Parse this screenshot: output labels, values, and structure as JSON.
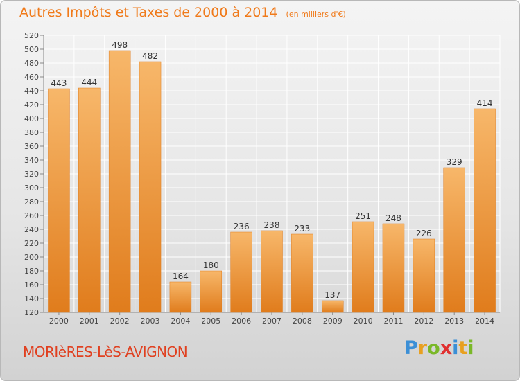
{
  "header": {
    "title": "Autres Impôts et Taxes de 2000 à 2014",
    "unit_note": "(en milliers d'€)"
  },
  "commune": "MORIèRES-LèS-AVIGNON",
  "brand": {
    "letters": [
      "P",
      "r",
      "o",
      "x",
      "i",
      "t",
      "i"
    ],
    "colors": [
      "#3b8fd6",
      "#e8a020",
      "#7ab828",
      "#e03030",
      "#3b8fd6",
      "#e8a020",
      "#7ab828"
    ]
  },
  "colors": {
    "bar": "#ef9434",
    "bar_light": "#f7b76a",
    "bar_dark": "#e07c1c",
    "title": "#f07a1a",
    "commune": "#e04020",
    "grid": "#ffffff"
  },
  "chart_data": {
    "type": "bar",
    "categories": [
      "2000",
      "2001",
      "2002",
      "2003",
      "2004",
      "2005",
      "2006",
      "2007",
      "2008",
      "2009",
      "2010",
      "2011",
      "2012",
      "2013",
      "2014"
    ],
    "values": [
      443,
      444,
      498,
      482,
      164,
      180,
      236,
      238,
      233,
      137,
      251,
      248,
      226,
      329,
      414
    ],
    "ylim": [
      120,
      520
    ],
    "yticks": [
      120,
      140,
      160,
      180,
      200,
      220,
      240,
      260,
      280,
      300,
      320,
      340,
      360,
      380,
      400,
      420,
      440,
      460,
      480,
      500,
      520
    ],
    "grid": true,
    "xlabel": "",
    "ylabel": ""
  }
}
